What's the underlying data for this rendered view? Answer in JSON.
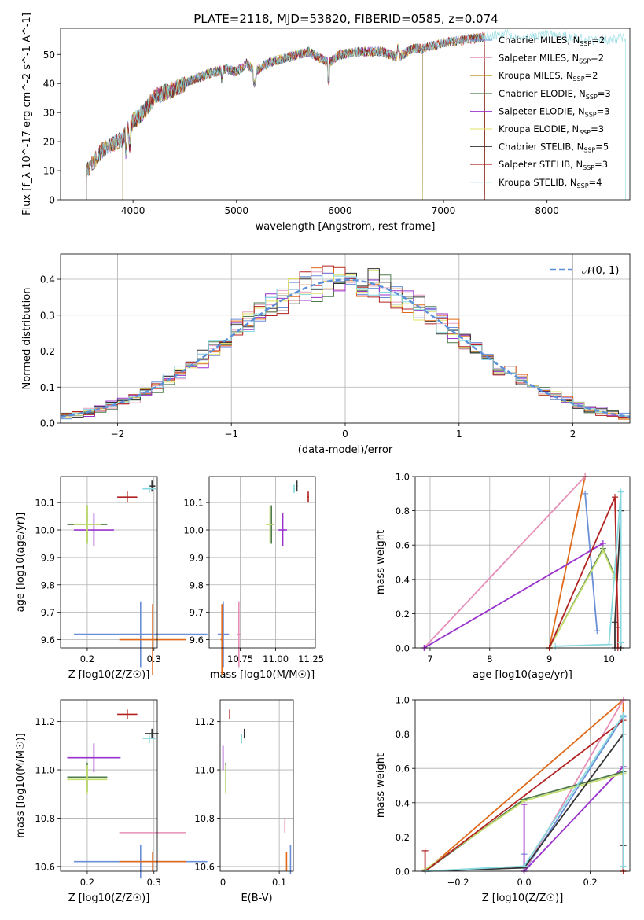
{
  "chart_data": [
    {
      "id": "spectrum",
      "type": "line",
      "title": "PLATE=2118, MJD=53820, FIBERID=0585, z=0.074",
      "xlabel": "wavelength [Angstrom, rest frame]",
      "ylabel": "Flux [f_λ 10^-17 erg cm^-2 s^-1 A^-1]",
      "xlim": [
        3300,
        8800
      ],
      "ylim": [
        0,
        59
      ],
      "xticks": [
        4000,
        5000,
        6000,
        7000,
        8000
      ],
      "yticks": [
        0,
        10,
        20,
        30,
        40,
        50
      ],
      "grid": false,
      "legend_position": "right",
      "series": [
        {
          "name": "Chabrier MILES, N_SSP=2",
          "color": "#6a8fd8",
          "xrange": [
            3550,
            7400
          ]
        },
        {
          "name": "Salpeter MILES, N_SSP=2",
          "color": "#e6a0c4",
          "xrange": [
            3550,
            7400
          ]
        },
        {
          "name": "Kroupa MILES, N_SSP=2",
          "color": "#b8860b",
          "xrange": [
            3550,
            7400
          ]
        },
        {
          "name": "Chabrier ELODIE, N_SSP=3",
          "color": "#4e7a4e",
          "xrange": [
            3900,
            6800
          ]
        },
        {
          "name": "Salpeter ELODIE, N_SSP=3",
          "color": "#9932cc",
          "xrange": [
            3900,
            6800
          ]
        },
        {
          "name": "Kroupa ELODIE, N_SSP=3",
          "color": "#e0e060",
          "xrange": [
            3900,
            6800
          ]
        },
        {
          "name": "Chabrier STELIB, N_SSP=5",
          "color": "#333333",
          "xrange": [
            3550,
            7400
          ]
        },
        {
          "name": "Salpeter STELIB, N_SSP=3",
          "color": "#b22222",
          "xrange": [
            3550,
            7400
          ]
        },
        {
          "name": "Kroupa STELIB, N_SSP=4",
          "color": "#88d8e0",
          "xrange": [
            3550,
            8760
          ]
        }
      ],
      "data_curve": {
        "x": [
          3550,
          3700,
          3900,
          4000,
          4100,
          4200,
          4300,
          4400,
          4500,
          4700,
          4900,
          5000,
          5100,
          5175,
          5300,
          5500,
          5700,
          5890,
          6000,
          6200,
          6400,
          6563,
          6700,
          6800,
          7000,
          7200,
          7400,
          7600,
          7800,
          8000,
          8200,
          8400,
          8600,
          8760
        ],
        "y": [
          10,
          17,
          21,
          27,
          30,
          35,
          37,
          38,
          40,
          43,
          45,
          44,
          47,
          44,
          47,
          49,
          51,
          47,
          50,
          51,
          51,
          49,
          52,
          52,
          54,
          55,
          56,
          57,
          56,
          57,
          56,
          55,
          55,
          56
        ]
      }
    },
    {
      "id": "residuals",
      "type": "bar",
      "title": "",
      "xlabel": "(data-model)/error",
      "ylabel": "Normed distribution",
      "xlim": [
        -2.5,
        2.5
      ],
      "ylim": [
        0,
        0.47
      ],
      "xticks": [
        -2,
        -1,
        0,
        1,
        2
      ],
      "yticks": [
        0.0,
        0.1,
        0.2,
        0.3,
        0.4
      ],
      "grid": true,
      "legend_position": "top-right",
      "legend": [
        {
          "name": "𝒩(0, 1)",
          "color": "#5b8fd9",
          "style": "dashed"
        }
      ],
      "bin_width": 0.1
    },
    {
      "id": "age-z",
      "type": "scatter",
      "xlabel": "Z [log10(Z/Z☉)]",
      "ylabel": "age  [log10(age/yr)]",
      "xlim": [
        0.16,
        0.305
      ],
      "ylim": [
        9.57,
        10.195
      ],
      "xticks": [
        0.2,
        0.3
      ],
      "yticks": [
        9.6,
        9.7,
        9.8,
        9.9,
        10.0,
        10.1
      ],
      "grid": true,
      "points": [
        {
          "color": "#6a8fd8",
          "x": 0.28,
          "y": 9.62,
          "xerr": 0.1,
          "yerr": 0.12
        },
        {
          "color": "#e06a1a",
          "x": 0.298,
          "y": 9.6,
          "xerr": 0.05,
          "yerr": 0.13
        },
        {
          "color": "#e68fb8",
          "x": 0.298,
          "y": 9.6,
          "xerr": 0.0,
          "yerr": 0.0
        },
        {
          "color": "#4e7a4e",
          "x": 0.2,
          "y": 10.02,
          "xerr": 0.03,
          "yerr": 0.07
        },
        {
          "color": "#9932cc",
          "x": 0.21,
          "y": 10.0,
          "xerr": 0.03,
          "yerr": 0.06
        },
        {
          "color": "#c6e070",
          "x": 0.2,
          "y": 10.02,
          "xerr": 0.02,
          "yerr": 0.07
        },
        {
          "color": "#333333",
          "x": 0.297,
          "y": 10.16,
          "xerr": 0.005,
          "yerr": 0.02
        },
        {
          "color": "#b22222",
          "x": 0.26,
          "y": 10.12,
          "xerr": 0.015,
          "yerr": 0.02
        },
        {
          "color": "#88d8e0",
          "x": 0.293,
          "y": 10.15,
          "xerr": 0.01,
          "yerr": 0.015
        }
      ]
    },
    {
      "id": "age-mass",
      "type": "scatter",
      "xlabel": "mass [log10(M/M☉)]",
      "ylabel": "",
      "xlim": [
        10.53,
        11.28
      ],
      "ylim": [
        9.57,
        10.195
      ],
      "xticks": [
        10.75,
        11.0,
        11.25
      ],
      "xtick_labels": [
        "10.75",
        "11.00",
        "11.25"
      ],
      "yticks": [
        9.6,
        9.7,
        9.8,
        9.9,
        10.0,
        10.1
      ],
      "grid": true,
      "points": [
        {
          "color": "#6a8fd8",
          "x": 10.63,
          "y": 9.62,
          "xerr": 0.04,
          "yerr": 0.12
        },
        {
          "color": "#e06a1a",
          "x": 10.62,
          "y": 9.6,
          "xerr": 0.01,
          "yerr": 0.13
        },
        {
          "color": "#e68fb8",
          "x": 10.74,
          "y": 9.62,
          "xerr": 0.01,
          "yerr": 0.12
        },
        {
          "color": "#4e7a4e",
          "x": 10.97,
          "y": 10.02,
          "xerr": 0.02,
          "yerr": 0.07
        },
        {
          "color": "#9932cc",
          "x": 11.05,
          "y": 10.0,
          "xerr": 0.03,
          "yerr": 0.06
        },
        {
          "color": "#c6e070",
          "x": 10.96,
          "y": 10.02,
          "xerr": 0.03,
          "yerr": 0.07
        },
        {
          "color": "#333333",
          "x": 11.15,
          "y": 10.16,
          "xerr": 0.005,
          "yerr": 0.02
        },
        {
          "color": "#b22222",
          "x": 11.23,
          "y": 10.12,
          "xerr": 0.005,
          "yerr": 0.02
        },
        {
          "color": "#88d8e0",
          "x": 11.13,
          "y": 10.15,
          "xerr": 0.005,
          "yerr": 0.015
        }
      ]
    },
    {
      "id": "mass-weight-age",
      "type": "line",
      "xlabel": "age  [log10(age/yr)]",
      "ylabel": "mass weight",
      "xlim": [
        6.75,
        10.35
      ],
      "ylim": [
        0,
        1.0
      ],
      "xticks": [
        7,
        8,
        9,
        10
      ],
      "yticks": [
        0.0,
        0.2,
        0.4,
        0.6,
        0.8,
        1.0
      ],
      "grid": true,
      "series": [
        {
          "color": "#6a8fd8",
          "x": [
            9.6,
            9.8
          ],
          "y": [
            0.9,
            0.1
          ]
        },
        {
          "color": "#e06a1a",
          "x": [
            9.0,
            9.6
          ],
          "y": [
            0.0,
            1.0
          ]
        },
        {
          "color": "#e68fb8",
          "x": [
            6.9,
            9.6
          ],
          "y": [
            0.0,
            1.0
          ]
        },
        {
          "color": "#9932cc",
          "x": [
            6.9,
            9.9
          ],
          "y": [
            0.0,
            0.61
          ]
        },
        {
          "color": "#4e7a4e",
          "x": [
            9.0,
            9.9,
            10.1
          ],
          "y": [
            0.0,
            0.58,
            0.42
          ]
        },
        {
          "color": "#c6e070",
          "x": [
            9.0,
            9.9,
            10.1
          ],
          "y": [
            0.0,
            0.57,
            0.41
          ]
        },
        {
          "color": "#333333",
          "x": [
            10.1,
            10.1,
            10.2,
            10.2
          ],
          "y": [
            0.0,
            0.15,
            0.8,
            0.0
          ]
        },
        {
          "color": "#b22222",
          "x": [
            9.0,
            10.1,
            10.15,
            10.15
          ],
          "y": [
            0.0,
            0.88,
            0.12,
            0.0
          ]
        },
        {
          "color": "#88d8e0",
          "x": [
            9.1,
            10.0,
            10.2,
            10.2
          ],
          "y": [
            0.01,
            0.02,
            0.91,
            0.03
          ]
        }
      ]
    },
    {
      "id": "mass-z",
      "type": "scatter",
      "xlabel": "Z [log10(Z/Z☉)]",
      "ylabel": "mass [log10(M/M☉)]",
      "xlim": [
        0.16,
        0.305
      ],
      "ylim": [
        10.58,
        11.29
      ],
      "xticks": [
        0.2,
        0.3
      ],
      "yticks": [
        10.6,
        10.8,
        11.0,
        11.2
      ],
      "grid": true,
      "points": [
        {
          "color": "#6a8fd8",
          "x": 0.28,
          "y": 10.62,
          "xerr": 0.1,
          "yerr": 0.07
        },
        {
          "color": "#e06a1a",
          "x": 0.298,
          "y": 10.62,
          "xerr": 0.05,
          "yerr": 0.04
        },
        {
          "color": "#e68fb8",
          "x": 0.298,
          "y": 10.74,
          "xerr": 0.05,
          "yerr": 0.0
        },
        {
          "color": "#4e7a4e",
          "x": 0.2,
          "y": 10.97,
          "xerr": 0.03,
          "yerr": 0.06
        },
        {
          "color": "#9932cc",
          "x": 0.21,
          "y": 11.05,
          "xerr": 0.04,
          "yerr": 0.06
        },
        {
          "color": "#c6e070",
          "x": 0.2,
          "y": 10.96,
          "xerr": 0.03,
          "yerr": 0.06
        },
        {
          "color": "#333333",
          "x": 0.297,
          "y": 11.15,
          "xerr": 0.01,
          "yerr": 0.02
        },
        {
          "color": "#b22222",
          "x": 0.26,
          "y": 11.23,
          "xerr": 0.015,
          "yerr": 0.02
        },
        {
          "color": "#88d8e0",
          "x": 0.293,
          "y": 11.13,
          "xerr": 0.01,
          "yerr": 0.02
        }
      ]
    },
    {
      "id": "mass-ebv",
      "type": "scatter",
      "xlabel": "E(B-V)",
      "ylabel": "",
      "xlim": [
        -0.005,
        0.125
      ],
      "ylim": [
        10.58,
        11.29
      ],
      "xticks": [
        0.0,
        0.1
      ],
      "yticks": [
        10.6,
        10.8,
        11.0,
        11.2
      ],
      "grid": true,
      "points": [
        {
          "color": "#6a8fd8",
          "x": 0.12,
          "y": 10.63,
          "xerr": 0.0,
          "yerr": 0.06
        },
        {
          "color": "#e06a1a",
          "x": 0.113,
          "y": 10.62,
          "xerr": 0.0,
          "yerr": 0.04
        },
        {
          "color": "#e68fb8",
          "x": 0.11,
          "y": 10.77,
          "xerr": 0.0,
          "yerr": 0.03
        },
        {
          "color": "#4e7a4e",
          "x": 0.005,
          "y": 10.97,
          "xerr": 0.0,
          "yerr": 0.06
        },
        {
          "color": "#9932cc",
          "x": 0.0,
          "y": 11.05,
          "xerr": 0.0,
          "yerr": 0.05
        },
        {
          "color": "#c6e070",
          "x": 0.005,
          "y": 10.96,
          "xerr": 0.0,
          "yerr": 0.06
        },
        {
          "color": "#333333",
          "x": 0.038,
          "y": 11.15,
          "xerr": 0.0,
          "yerr": 0.02
        },
        {
          "color": "#b22222",
          "x": 0.012,
          "y": 11.23,
          "xerr": 0.0,
          "yerr": 0.02
        },
        {
          "color": "#88d8e0",
          "x": 0.033,
          "y": 11.13,
          "xerr": 0.0,
          "yerr": 0.02
        }
      ]
    },
    {
      "id": "mass-weight-z",
      "type": "line",
      "xlabel": "Z [log10(Z/Z☉)]",
      "ylabel": "mass weight",
      "xlim": [
        -0.33,
        0.32
      ],
      "ylim": [
        0,
        1.0
      ],
      "xticks": [
        -0.2,
        0.0,
        0.2
      ],
      "xtick_labels": [
        "−0.2",
        "0.0",
        "0.2"
      ],
      "yticks": [
        0.0,
        0.2,
        0.4,
        0.6,
        0.8,
        1.0
      ],
      "grid": true,
      "series": [
        {
          "color": "#6a8fd8",
          "x": [
            0.0,
            0.0,
            0.3
          ],
          "y": [
            0.1,
            0.0,
            0.9
          ]
        },
        {
          "color": "#e06a1a",
          "x": [
            -0.3,
            0.3,
            0.3
          ],
          "y": [
            0.0,
            1.0,
            0.0
          ]
        },
        {
          "color": "#e68fb8",
          "x": [
            0.0,
            0.3
          ],
          "y": [
            0.0,
            1.0
          ]
        },
        {
          "color": "#9932cc",
          "x": [
            0.0,
            0.0,
            0.3
          ],
          "y": [
            0.39,
            0.0,
            0.61
          ]
        },
        {
          "color": "#4e7a4e",
          "x": [
            -0.3,
            0.0,
            0.3
          ],
          "y": [
            0.0,
            0.42,
            0.58
          ]
        },
        {
          "color": "#c6e070",
          "x": [
            -0.3,
            0.0,
            0.3
          ],
          "y": [
            0.01,
            0.41,
            0.57
          ]
        },
        {
          "color": "#333333",
          "x": [
            -0.3,
            0.0,
            0.3,
            0.3
          ],
          "y": [
            0.0,
            0.02,
            0.8,
            0.15
          ]
        },
        {
          "color": "#b22222",
          "x": [
            -0.3,
            -0.3,
            0.3,
            0.3
          ],
          "y": [
            0.12,
            0.0,
            0.88,
            0.0
          ]
        },
        {
          "color": "#88d8e0",
          "x": [
            -0.3,
            0.0,
            0.3,
            0.3
          ],
          "y": [
            0.0,
            0.03,
            0.91,
            0.03
          ]
        }
      ]
    }
  ]
}
